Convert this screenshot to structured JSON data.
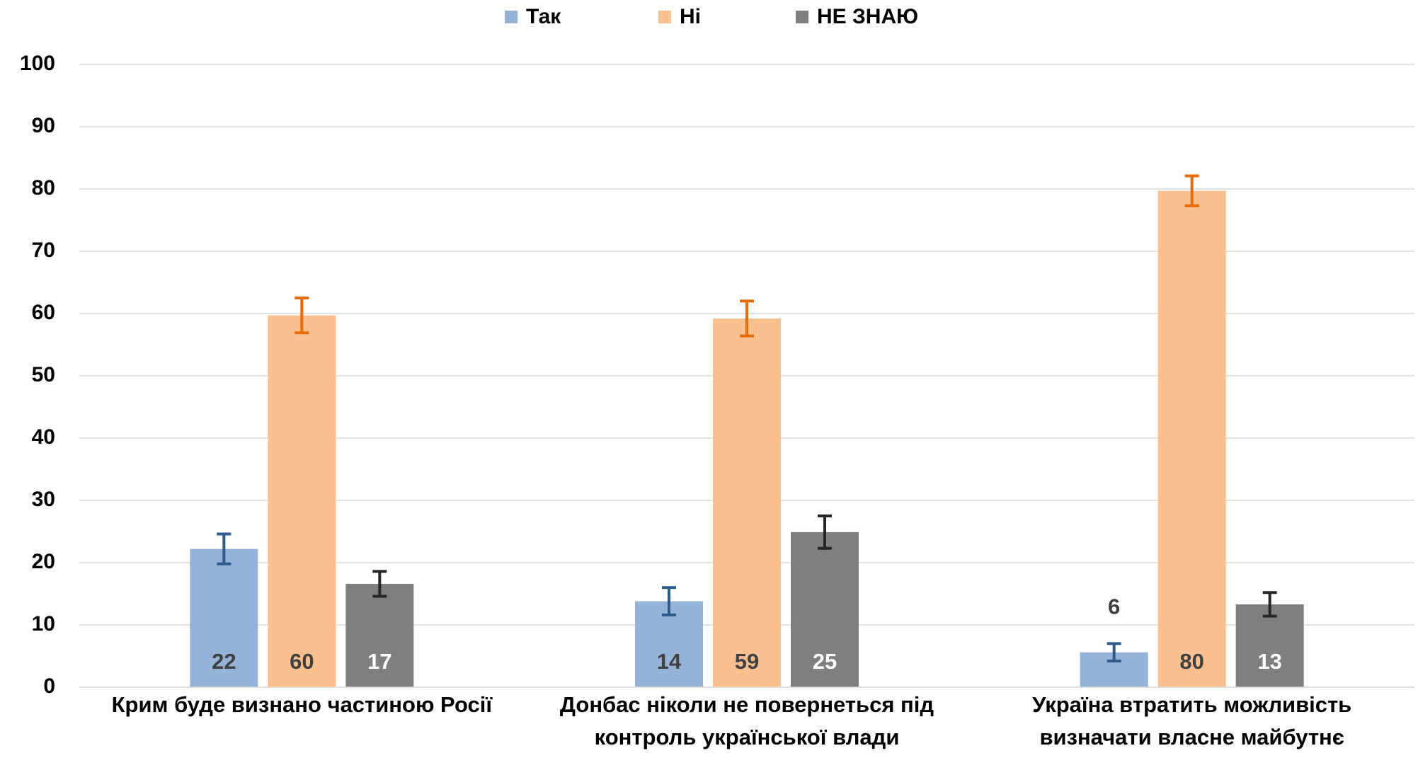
{
  "chart_data": {
    "type": "bar",
    "categories": [
      "Крим буде визнано частиною Росії",
      "Донбас ніколи не повернеться під контроль української влади",
      "Україна втратить можливість визначати власне майбутнє"
    ],
    "series": [
      {
        "name": "Так",
        "color": "#95b3d7",
        "error_color": "#2f5b8c",
        "values": [
          22.2,
          13.8,
          5.6
        ],
        "value_labels": [
          "22",
          "14",
          "6"
        ],
        "errors": [
          2.4,
          2.2,
          1.4
        ]
      },
      {
        "name": "Ні",
        "color": "#fac090",
        "error_color": "#e46c0a",
        "values": [
          59.7,
          59.2,
          79.7
        ],
        "value_labels": [
          "60",
          "59",
          "80"
        ],
        "errors": [
          2.8,
          2.8,
          2.4
        ]
      },
      {
        "name": "НЕ ЗНАЮ",
        "color": "#7f7f7f",
        "error_color": "#262626",
        "values": [
          16.6,
          24.9,
          13.3
        ],
        "value_labels": [
          "17",
          "25",
          "13"
        ],
        "errors": [
          2.0,
          2.6,
          1.9
        ]
      }
    ],
    "ylim": [
      0,
      100
    ],
    "yticks": [
      0,
      10,
      20,
      30,
      40,
      50,
      60,
      70,
      80,
      90,
      100
    ],
    "grid": true,
    "legend": "top"
  }
}
